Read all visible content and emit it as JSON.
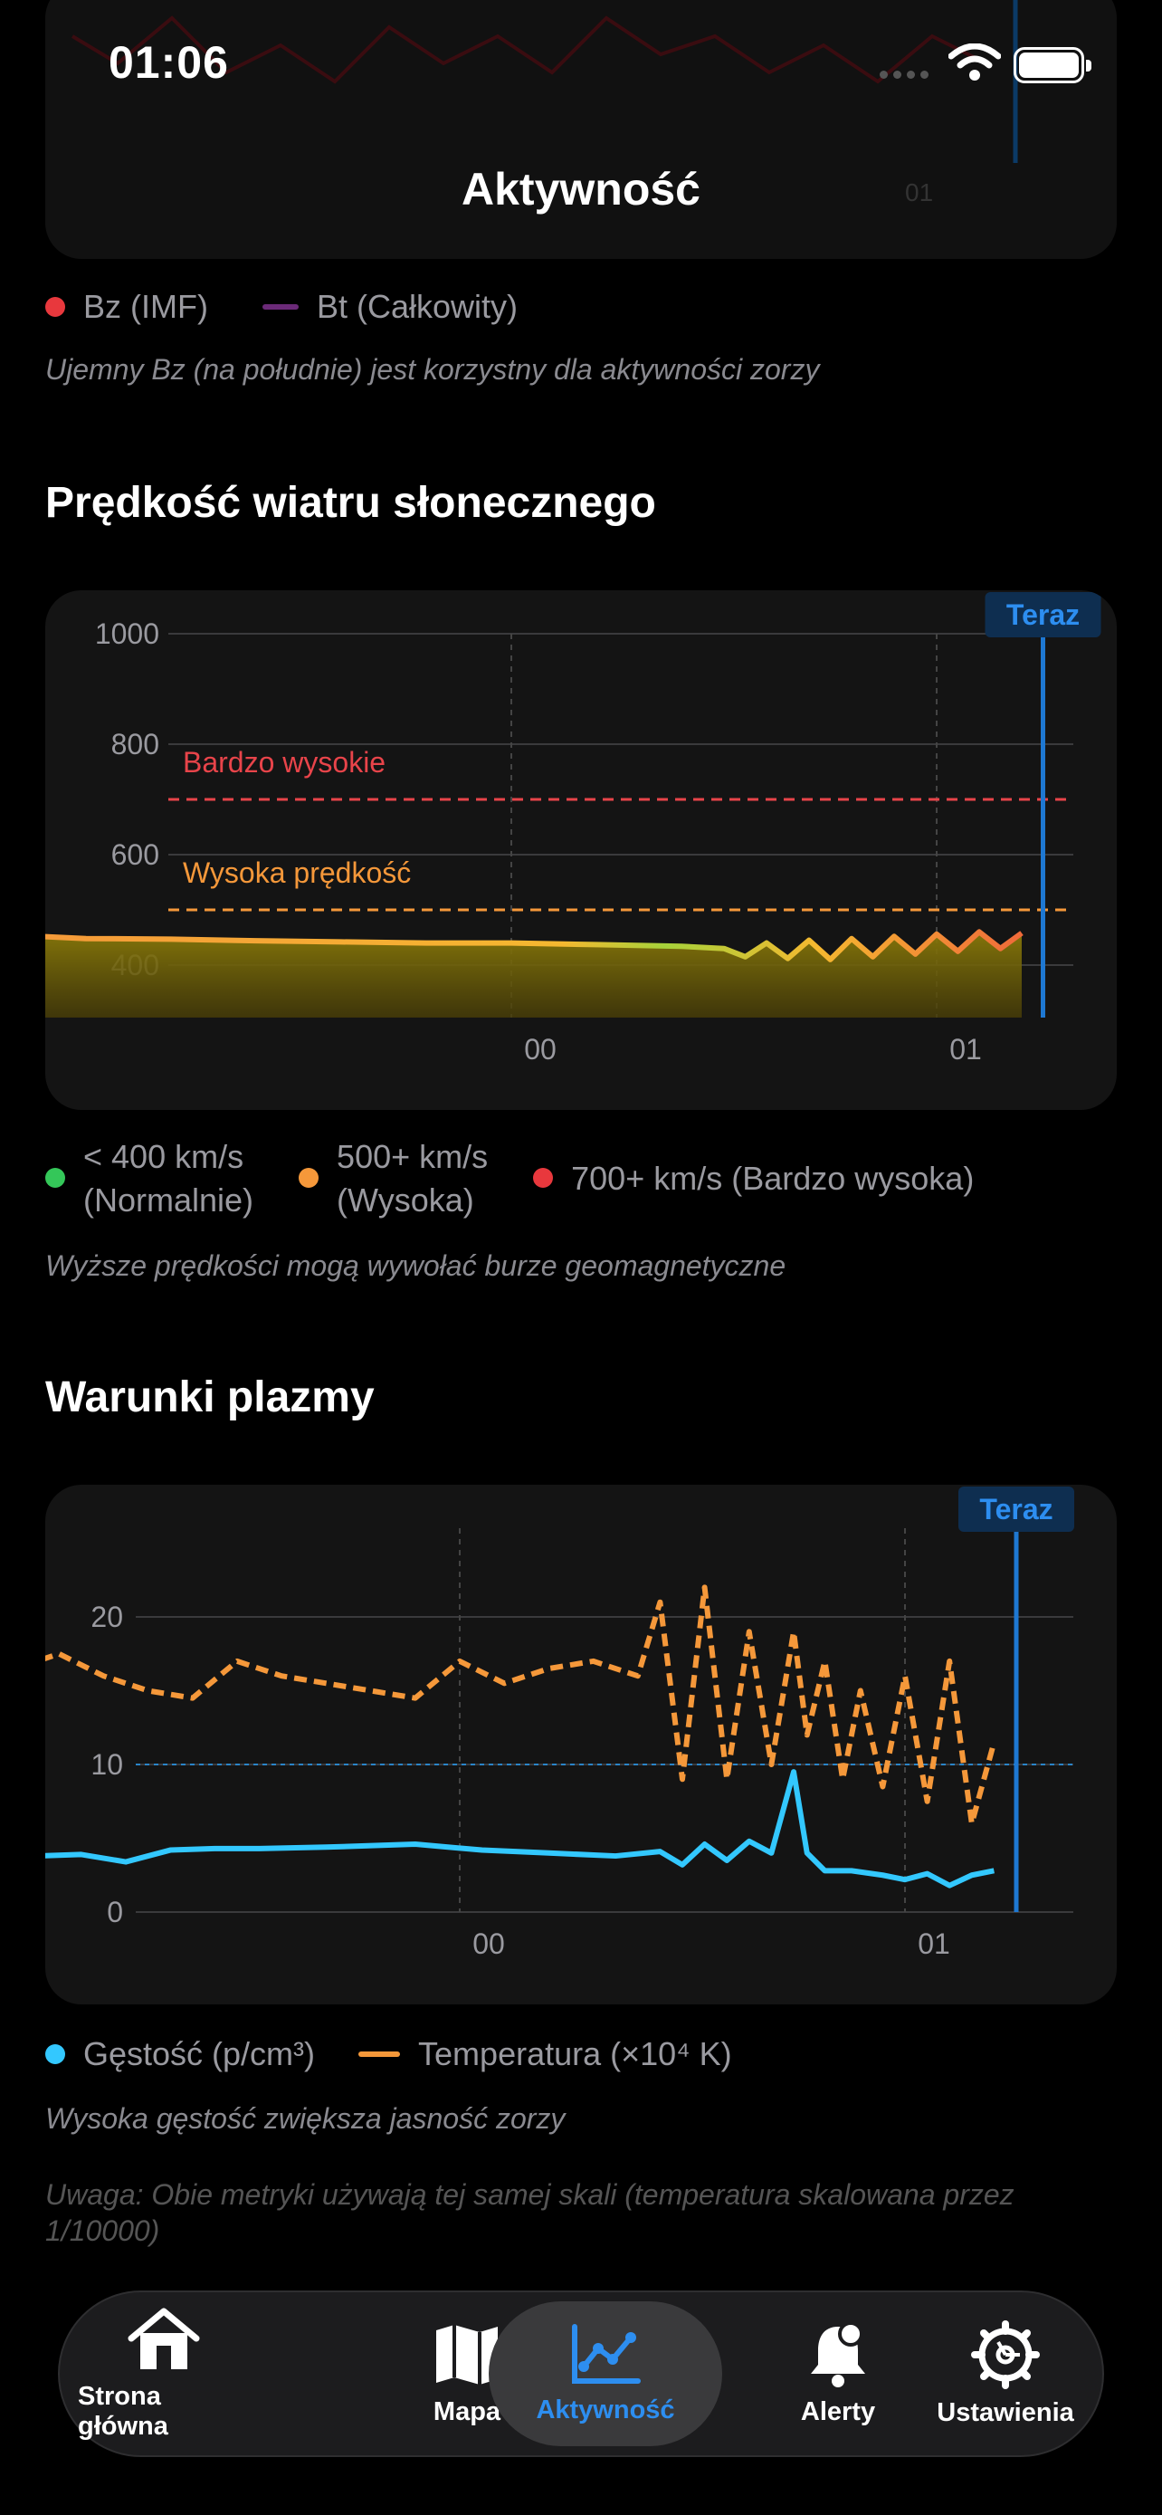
{
  "status": {
    "time": "01:06"
  },
  "nav": {
    "title": "Aktywność"
  },
  "bz_legend": {
    "items": [
      {
        "label": "Bz (IMF)",
        "color": "#e8383d"
      },
      {
        "label": "Bt (Całkowity)",
        "color": "#6b2a78"
      }
    ],
    "note": "Ujemny Bz (na południe) jest korzystny dla aktywności zorzy"
  },
  "wind": {
    "title": "Prędkość wiatru słonecznego",
    "now_label": "Teraz",
    "threshold_very_high": "Bardzo wysokie",
    "threshold_high": "Wysoka prędkość",
    "legend": [
      {
        "line1": "< 400 km/s",
        "line2": "(Normalnie)",
        "color": "#34c759"
      },
      {
        "line1": "500+ km/s",
        "line2": "(Wysoka)",
        "color": "#f5983a"
      },
      {
        "line1": "700+ km/s (Bardzo wysoka)",
        "line2": "",
        "color": "#e8383d"
      }
    ],
    "note": "Wyższe prędkości mogą wywołać burze geomagnetyczne"
  },
  "plasma": {
    "title": "Warunki plazmy",
    "now_label": "Teraz",
    "legend": [
      {
        "label": "Gęstość (p/cm³)",
        "color": "#33c8ff"
      },
      {
        "label": "Temperatura (×10⁴ K)",
        "color": "#f5983a"
      }
    ],
    "note1": "Wysoka gęstość zwiększa jasność zorzy",
    "note2": "Uwaga: Obie metryki używają tej samej skali (temperatura skalowana przez 1/10000)"
  },
  "tabs": [
    {
      "label": "Strona główna",
      "icon": "house-icon"
    },
    {
      "label": "Mapa",
      "icon": "map-icon"
    },
    {
      "label": "Aktywność",
      "icon": "chart-icon",
      "active": true
    },
    {
      "label": "Alerty",
      "icon": "bell-icon"
    },
    {
      "label": "Ustawienia",
      "icon": "gear-icon"
    }
  ],
  "chart_data": [
    {
      "type": "line",
      "title": "Prędkość wiatru słonecznego",
      "ylim": [
        300,
        1000
      ],
      "yticks": [
        "1000",
        "800",
        "600",
        "400"
      ],
      "xticks": [
        "00",
        "01"
      ],
      "thresholds": [
        {
          "value": 700,
          "label": "Bardzo wysokie",
          "color": "#e8444a"
        },
        {
          "value": 500,
          "label": "Wysoka prędkość",
          "color": "#f5983a"
        }
      ],
      "x_hours": [
        -1.2,
        -1.0,
        -0.8,
        -0.6,
        -0.4,
        -0.2,
        0.0,
        0.2,
        0.4,
        0.5,
        0.55,
        0.6,
        0.65,
        0.7,
        0.75,
        0.8,
        0.85,
        0.9,
        0.95,
        1.0,
        1.05,
        1.1,
        1.15,
        1.2
      ],
      "speed_kms": [
        455,
        448,
        447,
        444,
        442,
        440,
        440,
        437,
        434,
        430,
        415,
        440,
        412,
        445,
        410,
        448,
        415,
        452,
        420,
        456,
        425,
        460,
        430,
        458
      ],
      "now_hour": 1.25,
      "grid": true
    },
    {
      "type": "line",
      "title": "Warunki plazmy",
      "ylim": [
        0,
        25
      ],
      "yticks": [
        "20",
        "10",
        "0"
      ],
      "xticks": [
        "00",
        "01"
      ],
      "reference_line": 10,
      "series": [
        {
          "name": "Gęstość (p/cm³)",
          "x_hours": [
            -1.2,
            -1.15,
            -1.05,
            -0.95,
            -0.85,
            -0.75,
            -0.65,
            -0.55,
            -0.45,
            -0.3,
            -0.1,
            0.05,
            0.2,
            0.35,
            0.45,
            0.5,
            0.55,
            0.6,
            0.65,
            0.7,
            0.75,
            0.78,
            0.82,
            0.88,
            0.95,
            1.0,
            1.05,
            1.1,
            1.15,
            1.2
          ],
          "values": [
            3.3,
            4.0,
            4.4,
            3.8,
            3.9,
            3.4,
            4.2,
            4.3,
            4.3,
            4.4,
            4.6,
            4.2,
            4.0,
            3.8,
            4.1,
            3.2,
            4.6,
            3.5,
            4.8,
            4.0,
            9.5,
            4.0,
            2.8,
            2.8,
            2.5,
            2.2,
            2.6,
            1.8,
            2.5,
            2.8
          ],
          "color": "#33c8ff",
          "style": "solid"
        },
        {
          "name": "Temperatura (×10⁴ K)",
          "x_hours": [
            -1.2,
            -1.1,
            -1.0,
            -0.9,
            -0.8,
            -0.7,
            -0.6,
            -0.5,
            -0.4,
            -0.3,
            -0.2,
            -0.1,
            0.0,
            0.1,
            0.2,
            0.3,
            0.4,
            0.45,
            0.5,
            0.55,
            0.6,
            0.65,
            0.7,
            0.75,
            0.78,
            0.82,
            0.86,
            0.9,
            0.95,
            1.0,
            1.05,
            1.1,
            1.15,
            1.2
          ],
          "values": [
            18,
            17,
            16.5,
            17.5,
            16,
            15,
            14.5,
            17,
            16,
            15.5,
            15,
            14.5,
            17,
            15.5,
            16.5,
            17,
            16,
            21,
            9,
            22,
            9,
            19,
            10,
            19,
            12,
            17,
            9,
            15,
            8.5,
            16,
            7.5,
            17,
            6,
            11.5
          ],
          "color": "#f5983a",
          "style": "dashed"
        }
      ],
      "now_hour": 1.25,
      "grid": true
    }
  ]
}
